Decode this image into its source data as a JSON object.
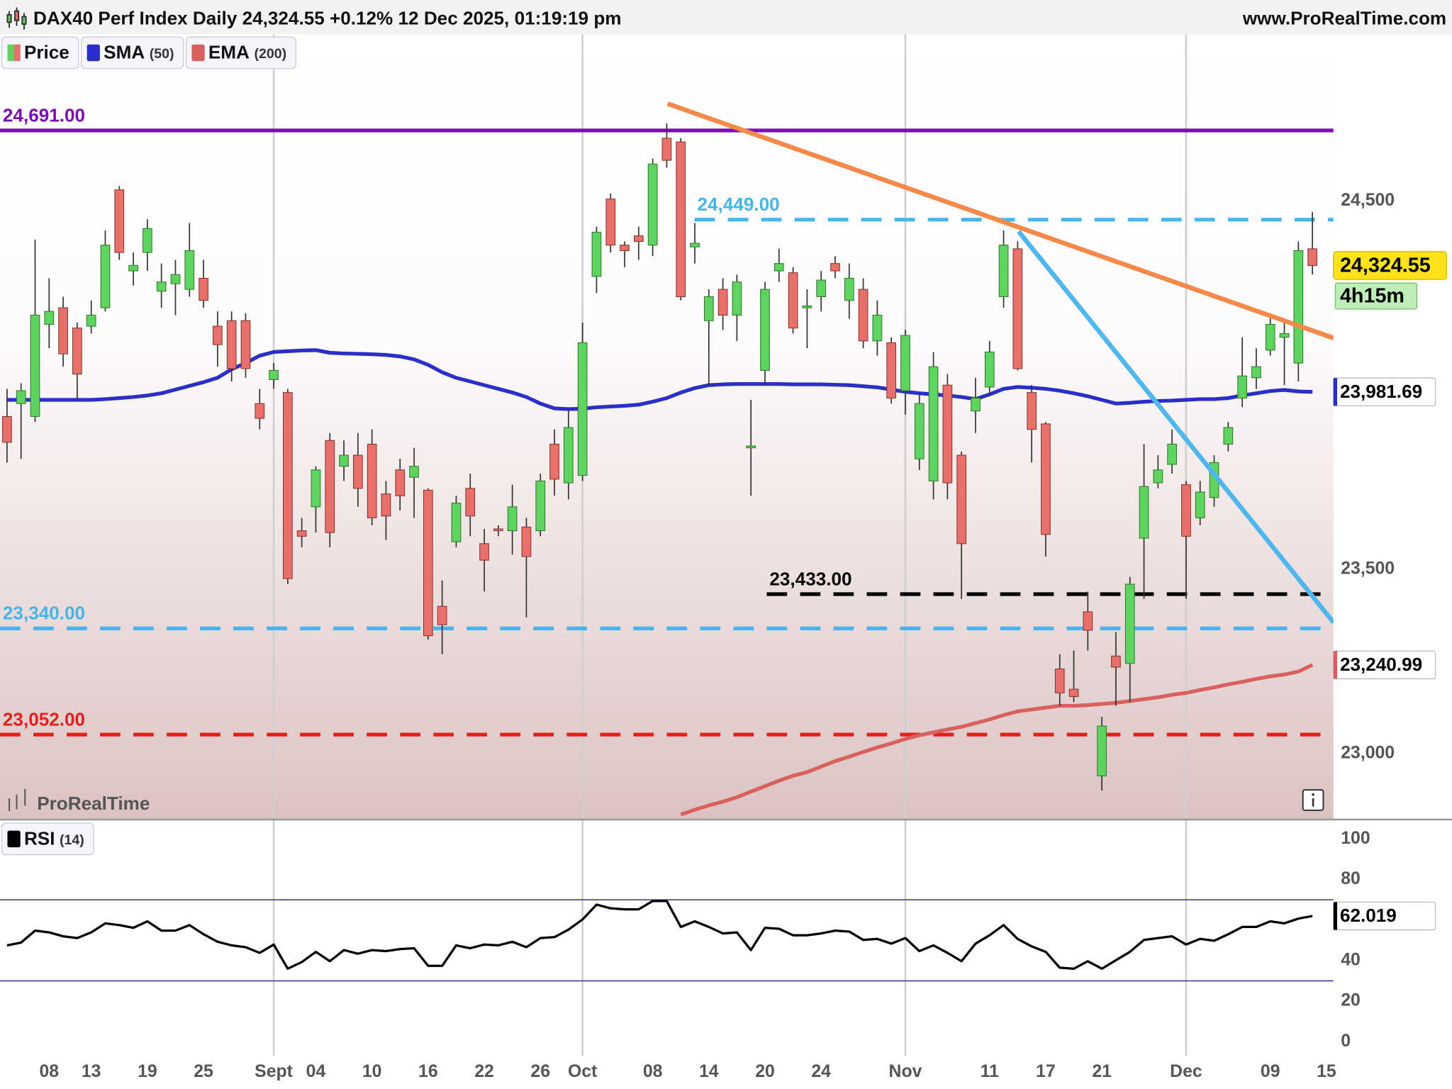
{
  "header": {
    "title": "DAX40 Perf Index Daily 24,324.55 +0.12% 12 Dec 2025, 01:19:19 pm",
    "site": "www.ProRealTime.com"
  },
  "chart_data": [
    {
      "type": "candlestick",
      "watermark": "ProRealTime",
      "xlim": [
        -0.5,
        94.5
      ],
      "ylim": [
        22824,
        24952
      ],
      "yticks": [
        {
          "value": 24500,
          "label": "24,500"
        },
        {
          "value": 23500,
          "label": "23,500"
        },
        {
          "value": 23000,
          "label": "23,000"
        }
      ],
      "series": [
        {
          "name": "Price",
          "colors": {
            "up": "#5fd35f",
            "down": "#e8706a"
          },
          "last_label": "24,324.55",
          "timer": "4h15m",
          "open": [
            23915,
            23950,
            23915,
            24165,
            24210,
            24155,
            24160,
            24210,
            24530,
            24310,
            24360,
            24255,
            24275,
            24260,
            24290,
            24160,
            24175,
            24175,
            23950,
            24015,
            23980,
            23605,
            23670,
            23850,
            23780,
            23810,
            23840,
            23705,
            23770,
            23750,
            23715,
            23400,
            23575,
            23720,
            23570,
            23610,
            23605,
            23615,
            23605,
            23840,
            23735,
            23755,
            24295,
            24505,
            24380,
            24405,
            24380,
            24670,
            24660,
            24375,
            24175,
            24260,
            24190,
            23830,
            24040,
            24310,
            24305,
            24210,
            24240,
            24330,
            24230,
            24260,
            24120,
            24115,
            23985,
            23800,
            23740,
            24000,
            23810,
            23930,
            23995,
            24240,
            24370,
            23980,
            23895,
            23230,
            23175,
            23385,
            22940,
            23265,
            23245,
            23585,
            23735,
            23785,
            23730,
            23640,
            23695,
            23840,
            23965,
            24020,
            24095,
            24130,
            24060,
            24370
          ],
          "high": [
            23990,
            24005,
            24395,
            24290,
            24240,
            24170,
            24230,
            24420,
            24540,
            24360,
            24450,
            24330,
            24340,
            24440,
            24340,
            24200,
            24200,
            24195,
            23990,
            24060,
            23990,
            23640,
            23780,
            23870,
            23850,
            23870,
            23880,
            23740,
            23800,
            23830,
            23720,
            23470,
            23700,
            23760,
            23610,
            23620,
            23730,
            23640,
            23760,
            23880,
            23930,
            24170,
            24430,
            24520,
            24390,
            24430,
            24615,
            24710,
            24670,
            24440,
            24260,
            24290,
            24300,
            23960,
            24280,
            24370,
            24320,
            24260,
            24310,
            24350,
            24330,
            24290,
            24230,
            24130,
            24150,
            23980,
            24090,
            24030,
            23820,
            24020,
            24120,
            24420,
            24390,
            24000,
            23900,
            23270,
            23280,
            23440,
            23100,
            23330,
            23480,
            23840,
            23810,
            23880,
            23740,
            23740,
            23810,
            23900,
            24130,
            24100,
            24190,
            24170,
            24390,
            24470
          ],
          "low": [
            23790,
            23800,
            23900,
            24100,
            24050,
            23960,
            24140,
            24200,
            24340,
            24270,
            24310,
            24210,
            24190,
            24240,
            24210,
            24050,
            24010,
            24020,
            23880,
            23990,
            23460,
            23560,
            23600,
            23560,
            23740,
            23670,
            23620,
            23580,
            23660,
            23640,
            23310,
            23270,
            23560,
            23590,
            23440,
            23590,
            23540,
            23370,
            23590,
            23700,
            23690,
            23740,
            24250,
            24360,
            24320,
            24340,
            24350,
            24590,
            24230,
            24330,
            24000,
            24150,
            24120,
            23700,
            24000,
            24280,
            24140,
            24100,
            24200,
            24290,
            24180,
            24100,
            24080,
            23950,
            23920,
            23770,
            23690,
            23690,
            23420,
            23870,
            23970,
            24210,
            24040,
            23790,
            23535,
            23130,
            23140,
            23280,
            22900,
            23130,
            23140,
            23420,
            23720,
            23760,
            23420,
            23620,
            23670,
            23820,
            23940,
            23990,
            24080,
            24000,
            24010,
            24300
          ],
          "close": [
            23845,
            23985,
            24190,
            24200,
            24085,
            24030,
            24190,
            24380,
            24360,
            24325,
            24425,
            24280,
            24300,
            24365,
            24230,
            24110,
            24045,
            24045,
            23910,
            24040,
            23475,
            23590,
            23770,
            23600,
            23810,
            23720,
            23640,
            23645,
            23700,
            23780,
            23320,
            23350,
            23680,
            23645,
            23525,
            23605,
            23670,
            23535,
            23740,
            23745,
            23885,
            24115,
            24415,
            24380,
            24365,
            24390,
            24600,
            24610,
            24240,
            24385,
            24240,
            24190,
            24280,
            23835,
            24260,
            24330,
            24155,
            24215,
            24285,
            24310,
            24290,
            24120,
            24190,
            23965,
            24135,
            23950,
            24050,
            23735,
            23570,
            23965,
            24090,
            24380,
            24045,
            23880,
            23595,
            23165,
            23155,
            23335,
            23075,
            23235,
            23460,
            23725,
            23770,
            23840,
            23590,
            23710,
            23790,
            23885,
            24025,
            24050,
            24165,
            24140,
            24365,
            24324.55
          ]
        },
        {
          "name": "SMA",
          "param": "(50)",
          "color": "#2b2fc9",
          "last_label": "23,981.69",
          "values": [
            23960,
            23960,
            23960,
            23960,
            23960,
            23960,
            23960,
            23962,
            23965,
            23968,
            23972,
            23978,
            23988,
            23998,
            24008,
            24020,
            24043,
            24060,
            24080,
            24090,
            24092,
            24094,
            24095,
            24088,
            24086,
            24085,
            24084,
            24082,
            24078,
            24070,
            24055,
            24035,
            24020,
            24010,
            24000,
            23990,
            23980,
            23968,
            23950,
            23937,
            23935,
            23936,
            23940,
            23942,
            23944,
            23947,
            23955,
            23965,
            23980,
            23992,
            24000,
            24002,
            24003,
            24003,
            24003,
            24003,
            24002,
            24002,
            24002,
            24001,
            24000,
            23997,
            23994,
            23988,
            23982,
            23978,
            23975,
            23972,
            23968,
            23962,
            23975,
            23990,
            23995,
            23993,
            23990,
            23985,
            23978,
            23970,
            23960,
            23950,
            23952,
            23955,
            23957,
            23958,
            23960,
            23962,
            23962,
            23965,
            23972,
            23978,
            23984,
            23987,
            23983,
            23981.69
          ]
        },
        {
          "name": "EMA",
          "param": "(200)",
          "color": "#d9605c",
          "last_label": "23,240.99",
          "values": [
            null,
            null,
            null,
            null,
            null,
            null,
            null,
            null,
            null,
            null,
            null,
            null,
            null,
            null,
            null,
            null,
            null,
            null,
            null,
            null,
            null,
            null,
            null,
            null,
            null,
            null,
            null,
            null,
            null,
            null,
            null,
            null,
            null,
            null,
            null,
            null,
            null,
            null,
            null,
            null,
            null,
            null,
            null,
            null,
            null,
            null,
            null,
            null,
            22835,
            22848,
            22860,
            22870,
            22882,
            22897,
            22912,
            22927,
            22940,
            22950,
            22965,
            22980,
            22992,
            23005,
            23017,
            23028,
            23040,
            23050,
            23058,
            23066,
            23073,
            23083,
            23093,
            23105,
            23115,
            23120,
            23125,
            23130,
            23130,
            23132,
            23135,
            23138,
            23143,
            23148,
            23153,
            23160,
            23165,
            23173,
            23180,
            23188,
            23195,
            23203,
            23210,
            23215,
            23223,
            23240.99
          ]
        }
      ],
      "levels": [
        {
          "value": 24691,
          "label": "24,691.00",
          "color": "#7b0bb5",
          "style": "solid"
        },
        {
          "value": 24449,
          "label": "24,449.00",
          "color": "#45b6ec",
          "style": "dashed"
        },
        {
          "value": 23340,
          "label": "23,340.00",
          "color": "#45b6ec",
          "style": "dashed"
        },
        {
          "value": 23052,
          "label": "23,052.00",
          "color": "#e61e1e",
          "style": "dashed"
        },
        {
          "value": 23433,
          "label": "23,433.00",
          "color": "#000000",
          "style": "dashed"
        }
      ]
    },
    {
      "type": "line",
      "xlim": [
        -0.5,
        94.5
      ],
      "ylim": [
        -6,
        108.7
      ],
      "yticks": [
        100,
        80,
        40,
        20,
        0
      ],
      "xticks": [
        {
          "value": 3,
          "label": "08"
        },
        {
          "value": 6,
          "label": "13"
        },
        {
          "value": 10,
          "label": "19"
        },
        {
          "value": 14,
          "label": "25"
        },
        {
          "value": 19,
          "label": "Sept"
        },
        {
          "value": 22,
          "label": "04"
        },
        {
          "value": 26,
          "label": "10"
        },
        {
          "value": 30,
          "label": "16"
        },
        {
          "value": 34,
          "label": "22"
        },
        {
          "value": 38,
          "label": "26"
        },
        {
          "value": 41,
          "label": "Oct"
        },
        {
          "value": 46,
          "label": "08"
        },
        {
          "value": 50,
          "label": "14"
        },
        {
          "value": 54,
          "label": "20"
        },
        {
          "value": 58,
          "label": "24"
        },
        {
          "value": 64,
          "label": "Nov"
        },
        {
          "value": 70,
          "label": "11"
        },
        {
          "value": 74,
          "label": "17"
        },
        {
          "value": 78,
          "label": "21"
        },
        {
          "value": 84,
          "label": "Dec"
        },
        {
          "value": 90,
          "label": "09"
        },
        {
          "value": 94,
          "label": "15"
        }
      ],
      "series": [
        {
          "name": "RSI",
          "param": "(14)",
          "color": "#000000",
          "last_label": "62.019",
          "values": [
            47.5,
            48.9,
            54.8,
            53.9,
            52,
            51.1,
            53.9,
            58.4,
            57.5,
            56.2,
            59.4,
            54.8,
            54.8,
            57.5,
            53,
            49.3,
            47.5,
            46.6,
            43.8,
            47.9,
            36,
            39.3,
            44.3,
            39.7,
            45.2,
            43.4,
            45.2,
            44.7,
            45.7,
            46.1,
            37.4,
            37.4,
            47.5,
            46.1,
            47.9,
            47.5,
            49.3,
            46.6,
            51.1,
            51.6,
            55.3,
            60.3,
            67.6,
            65.8,
            65.3,
            65.3,
            69.4,
            69.4,
            56.6,
            59.4,
            56.6,
            53.4,
            53.9,
            45.2,
            56.2,
            55.7,
            52.5,
            52.5,
            53.4,
            54.8,
            54.3,
            50.2,
            50.7,
            48.4,
            51.1,
            44.7,
            47.5,
            43.8,
            39.7,
            48.4,
            52.5,
            57.5,
            50.7,
            47,
            44.3,
            36.5,
            36,
            39.7,
            36,
            40.2,
            44.3,
            50.2,
            51.1,
            52,
            47.9,
            50.7,
            49.8,
            53,
            56.6,
            56.6,
            59.4,
            58.4,
            60.7,
            62.019
          ]
        }
      ],
      "levels": [
        {
          "value": 70,
          "color": "#3b2f9e",
          "style": "solid"
        },
        {
          "value": 30,
          "color": "#3b2f9e",
          "style": "solid"
        }
      ]
    }
  ]
}
